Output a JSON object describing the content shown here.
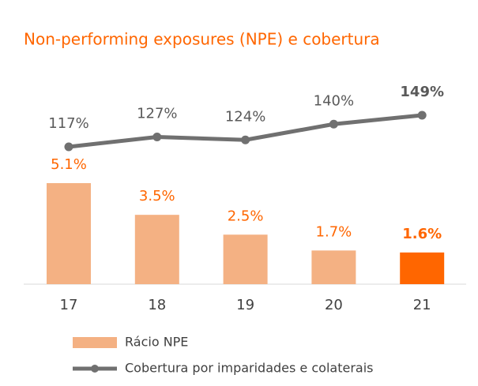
{
  "chart_data": {
    "type": "bar",
    "title": "Non-performing exposures (NPE) e cobertura",
    "categories": [
      "17",
      "18",
      "19",
      "20",
      "21"
    ],
    "series": [
      {
        "name": "Rácio NPE",
        "type": "bar",
        "colors": [
          "#f4b183",
          "#f4b183",
          "#f4b183",
          "#f4b183",
          "#ff6600"
        ],
        "values": [
          5.1,
          3.5,
          2.5,
          1.7,
          1.6
        ],
        "value_labels": [
          "5.1%",
          "3.5%",
          "2.5%",
          "1.7%",
          "1.6%"
        ]
      },
      {
        "name": "Cobertura por imparidades e colaterais",
        "type": "line",
        "color": "#707070",
        "axis": "y2",
        "values": [
          117,
          127,
          124,
          140,
          149
        ],
        "value_labels": [
          "117%",
          "127%",
          "124%",
          "140%",
          "149%"
        ]
      }
    ]
  }
}
